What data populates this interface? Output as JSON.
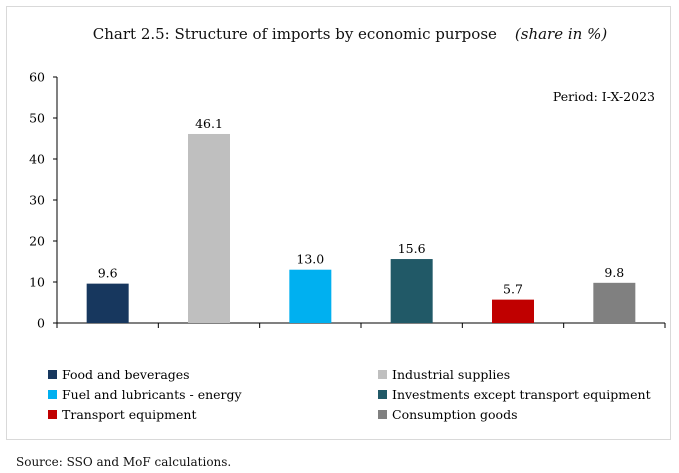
{
  "chart_data": {
    "type": "bar",
    "title": "Chart 2.5: Structure of imports by economic purpose",
    "subtitle": "(share in %)",
    "annotation": "Period: I-X-2023",
    "categories": [
      "Food and beverages",
      "Industrial supplies",
      "Fuel and lubricants - energy",
      "Investments except transport equipment",
      "Transport equipment",
      "Consumption goods"
    ],
    "values": [
      9.6,
      46.1,
      13.0,
      15.6,
      5.7,
      9.8
    ],
    "value_labels": [
      "9.6",
      "46.1",
      "13.0",
      "15.6",
      "5.7",
      "9.8"
    ],
    "colors": [
      "#17375e",
      "#bfbfbf",
      "#00b0f0",
      "#215967",
      "#c00000",
      "#808080"
    ],
    "ylim": [
      0,
      60
    ],
    "yticks": [
      "0",
      "10",
      "20",
      "30",
      "40",
      "50",
      "60"
    ],
    "grid": false,
    "legend_position": "bottom"
  },
  "source": "Source: SSO and MoF calculations."
}
